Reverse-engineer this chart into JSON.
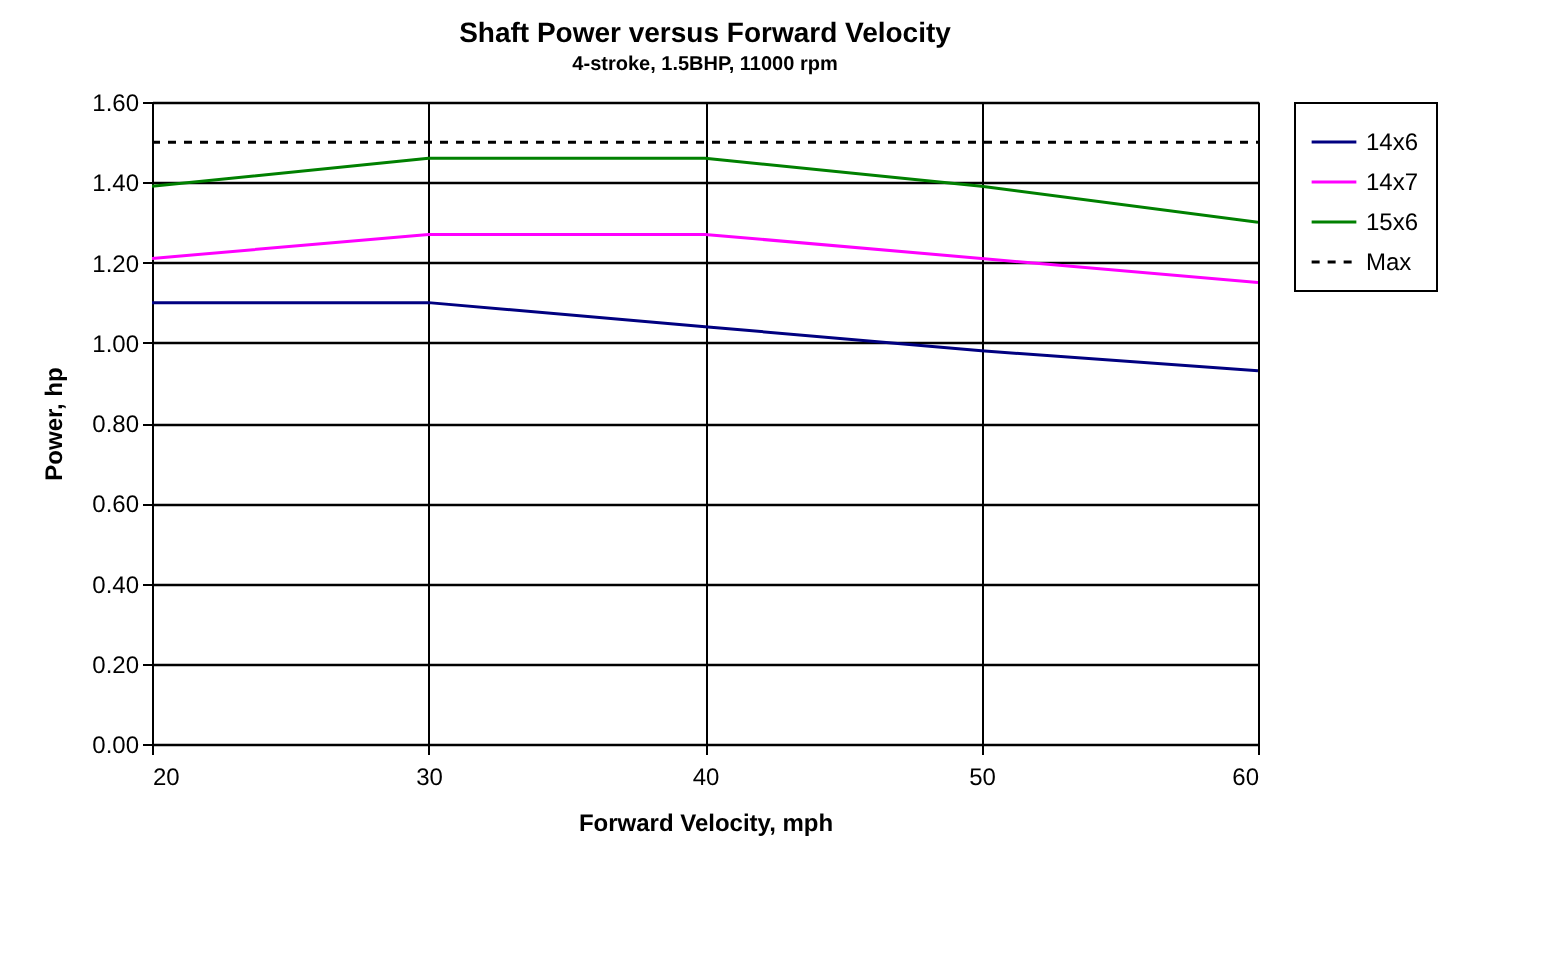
{
  "chart_data": {
    "type": "line",
    "title": "Shaft Power versus Forward Velocity",
    "subtitle": "4-stroke, 1.5BHP, 11000 rpm",
    "xlabel": "Forward Velocity, mph",
    "ylabel": "Power, hp",
    "x": [
      20,
      30,
      40,
      50,
      60
    ],
    "series": [
      {
        "name": "14x6",
        "color": "#000080",
        "values": [
          1.1,
          1.1,
          1.04,
          0.98,
          0.93
        ]
      },
      {
        "name": "14x7",
        "color": "#ff00ff",
        "values": [
          1.21,
          1.27,
          1.27,
          1.21,
          1.15
        ]
      },
      {
        "name": "15x6",
        "color": "#008000",
        "values": [
          1.39,
          1.46,
          1.46,
          1.39,
          1.3
        ]
      },
      {
        "name": "Max",
        "color": "#000000",
        "line_style": "dashed",
        "values": [
          1.5,
          1.5,
          1.5,
          1.5,
          1.5
        ]
      }
    ],
    "xlim": [
      20,
      60
    ],
    "xticks": [
      20,
      30,
      40,
      50,
      60
    ],
    "ylim": [
      0,
      1.6
    ],
    "yticks": [
      {
        "value": 0,
        "label": "0.00"
      },
      {
        "value": 0.2,
        "label": "0.20"
      },
      {
        "value": 0.4,
        "label": "0.40"
      },
      {
        "value": 0.6,
        "label": "0.60"
      },
      {
        "value": 0.8,
        "label": "0.80"
      },
      {
        "value": 1.0,
        "label": "1.00"
      },
      {
        "value": 1.2,
        "label": "1.20"
      },
      {
        "value": 1.4,
        "label": "1.40"
      },
      {
        "value": 1.6,
        "label": "1.60"
      }
    ],
    "grid": true,
    "legend": "right",
    "marker": "none"
  }
}
